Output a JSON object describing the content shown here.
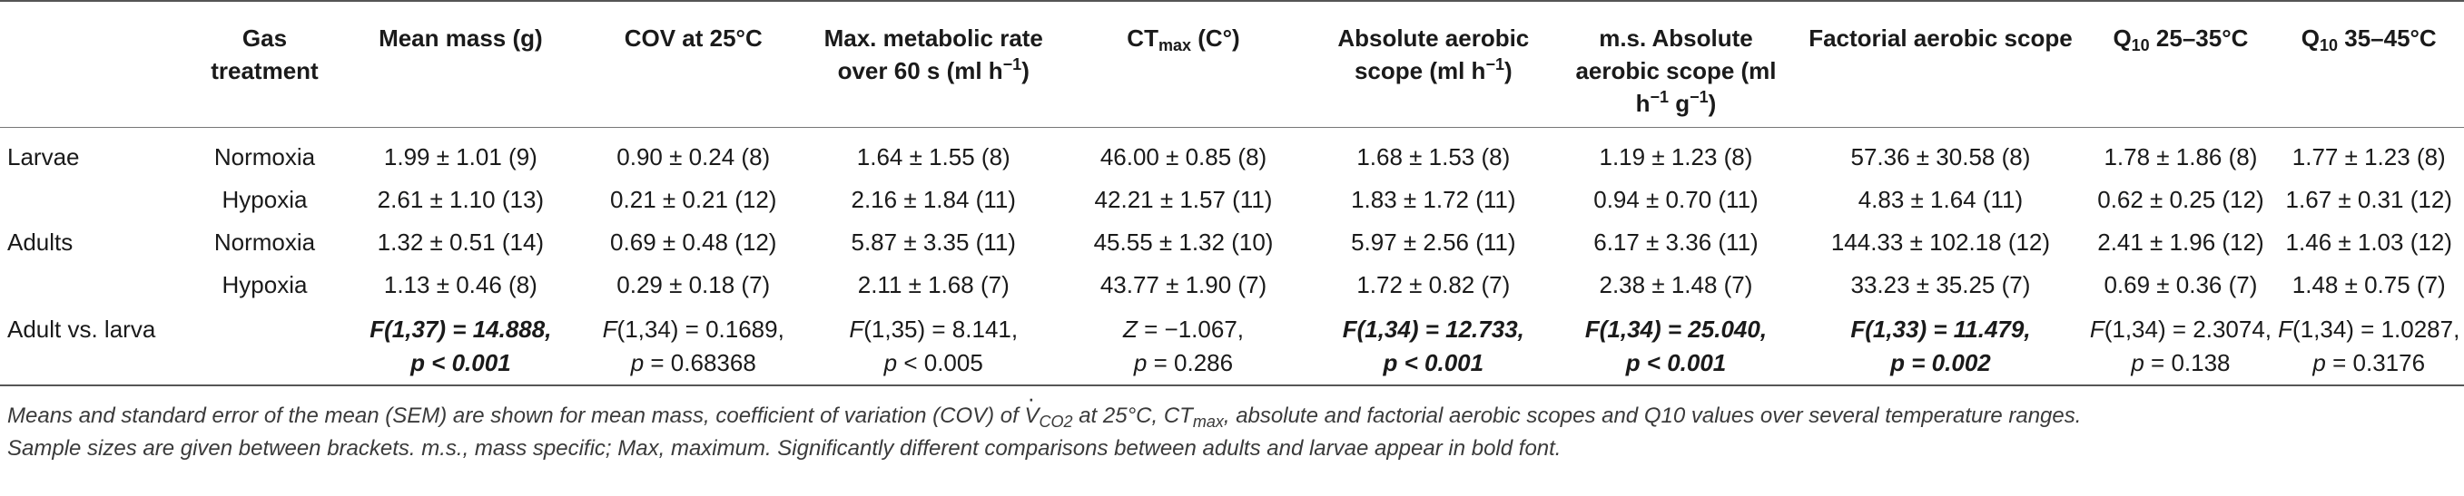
{
  "headers": {
    "gas": "Gas treatment",
    "mass": "Mean mass (g)",
    "cov": "COV at 25°C",
    "maxmet": "Max. metabolic rate over 60 s (ml h",
    "maxmet_sup": "−1",
    "maxmet_close": ")",
    "ctmax_main": "CT",
    "ctmax_sub": "max",
    "ctmax_unit": " (C°)",
    "aas_main": "Absolute aerobic scope (ml h",
    "aas_sup": "−1",
    "aas_close": ")",
    "ms_main": "m.s. Absolute aerobic scope (ml h",
    "ms_sup1": "−1",
    "ms_mid": " g",
    "ms_sup2": "−1",
    "ms_close": ")",
    "fas": "Factorial aerobic scope",
    "q1_main": "Q",
    "q1_sub": "10",
    "q1_rest": " 25–35°C",
    "q2_main": "Q",
    "q2_sub": "10",
    "q2_rest": " 35–45°C"
  },
  "rows": [
    {
      "group": "Larvae",
      "gas": "Normoxia",
      "mass": "1.99 ± 1.01 (9)",
      "cov": "0.90 ± 0.24 (8)",
      "maxmet": "1.64 ± 1.55 (8)",
      "ctmax": "46.00 ± 0.85 (8)",
      "aas": "1.68 ± 1.53 (8)",
      "ms": "1.19 ± 1.23 (8)",
      "fas": "57.36 ± 30.58 (8)",
      "q1": "1.78 ± 1.86 (8)",
      "q2": "1.77 ± 1.23 (8)"
    },
    {
      "group": "",
      "gas": "Hypoxia",
      "mass": "2.61 ± 1.10 (13)",
      "cov": "0.21 ± 0.21 (12)",
      "maxmet": "2.16 ± 1.84 (11)",
      "ctmax": "42.21 ± 1.57 (11)",
      "aas": "1.83 ± 1.72 (11)",
      "ms": "0.94 ± 0.70 (11)",
      "fas": "4.83 ± 1.64 (11)",
      "q1": "0.62 ± 0.25 (12)",
      "q2": "1.67 ± 0.31 (12)"
    },
    {
      "group": "Adults",
      "gas": "Normoxia",
      "mass": "1.32 ± 0.51 (14)",
      "cov": "0.69 ± 0.48 (12)",
      "maxmet": "5.87 ± 3.35 (11)",
      "ctmax": "45.55 ± 1.32 (10)",
      "aas": "5.97 ± 2.56 (11)",
      "ms": "6.17 ± 3.36 (11)",
      "fas": "144.33 ± 102.18 (12)",
      "q1": "2.41 ± 1.96 (12)",
      "q2": "1.46 ± 1.03 (12)"
    },
    {
      "group": "",
      "gas": "Hypoxia",
      "mass": "1.13 ± 0.46 (8)",
      "cov": "0.29 ± 0.18 (7)",
      "maxmet": "2.11 ± 1.68 (7)",
      "ctmax": "43.77 ± 1.90 (7)",
      "aas": "1.72 ± 0.82 (7)",
      "ms": "2.38 ± 1.48 (7)",
      "fas": "33.23 ± 35.25 (7)",
      "q1": "0.69 ± 0.36 (7)",
      "q2": "1.48 ± 0.75 (7)"
    }
  ],
  "stats": {
    "label": "Adult vs. larva",
    "mass_l1": "F(1,37) = 14.888,",
    "mass_l2": "p < 0.001",
    "cov_f": "F",
    "cov_l1": "(1,34) = 0.1689,",
    "cov_p": "p",
    "cov_l2": " = 0.68368",
    "maxmet_f": "F",
    "maxmet_l1": "(1,35) = 8.141,",
    "maxmet_p": "p",
    "maxmet_l2": " < 0.005",
    "ctmax_z": "Z",
    "ctmax_l1": " = −1.067,",
    "ctmax_p": "p",
    "ctmax_l2": " = 0.286",
    "aas_l1": "F(1,34) = 12.733,",
    "aas_l2": "p < 0.001",
    "ms_l1": "F(1,34) = 25.040,",
    "ms_l2": "p < 0.001",
    "fas_l1": "F(1,33) = 11.479,",
    "fas_l2": "p = 0.002",
    "q1_f": "F",
    "q1_l1": "(1,34) = 2.3074,",
    "q1_p": "p",
    "q1_l2": " = 0.138",
    "q2_f": "F",
    "q2_l1": "(1,34) = 1.0287,",
    "q2_p": "p",
    "q2_l2": " = 0.3176"
  },
  "footnote": {
    "line1_a": "Means and standard error of the mean (SEM) are shown for mean mass, coefficient of variation (COV) of ",
    "vco2_v": "V",
    "vco2_sub": "CO2",
    "line1_b": " at 25°C, CT",
    "ctmax_sub": "max",
    "line1_c": ", absolute and factorial aerobic scopes and Q10 values over several temperature ranges.",
    "line2": "Sample sizes are given between brackets. m.s., mass specific; Max, maximum. Significantly different comparisons between adults and larvae appear in bold font."
  }
}
